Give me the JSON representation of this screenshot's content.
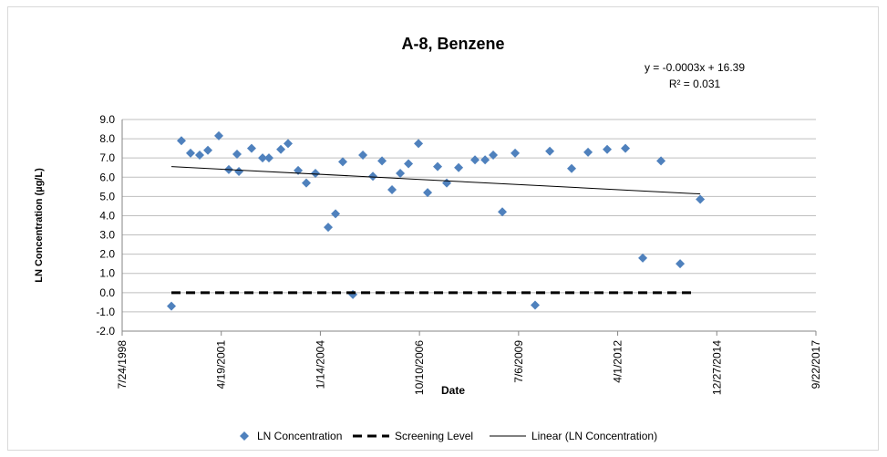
{
  "chart_data": {
    "type": "scatter",
    "title": "A-8, Benzene",
    "x_label": "Date",
    "y_label": "LN Concentration (µg/L)",
    "annotations": [
      "y = -0.0003x + 16.39",
      "R² = 0.031"
    ],
    "xlim": [
      36000,
      43000
    ],
    "xticks": [
      {
        "value": 36000,
        "label": "7/24/1998"
      },
      {
        "value": 37000,
        "label": "4/19/2001"
      },
      {
        "value": 38000,
        "label": "1/14/2004"
      },
      {
        "value": 39000,
        "label": "10/10/2006"
      },
      {
        "value": 40000,
        "label": "7/6/2009"
      },
      {
        "value": 41000,
        "label": "4/1/2012"
      },
      {
        "value": 42000,
        "label": "12/27/2014"
      },
      {
        "value": 43000,
        "label": "9/22/2017"
      }
    ],
    "ylim": [
      -2,
      9
    ],
    "yticks": [
      {
        "value": -2,
        "label": "-2.0"
      },
      {
        "value": -1,
        "label": "-1.0"
      },
      {
        "value": 0,
        "label": "0.0"
      },
      {
        "value": 1,
        "label": "1.0"
      },
      {
        "value": 2,
        "label": "2.0"
      },
      {
        "value": 3,
        "label": "3.0"
      },
      {
        "value": 4,
        "label": "4.0"
      },
      {
        "value": 5,
        "label": "5.0"
      },
      {
        "value": 6,
        "label": "6.0"
      },
      {
        "value": 7,
        "label": "7.0"
      },
      {
        "value": 8,
        "label": "8.0"
      },
      {
        "value": 9,
        "label": "9.0"
      }
    ],
    "grid": true,
    "legend": "bottom",
    "series": [
      {
        "name": "LN Concentration",
        "color": "#4f81bd",
        "style": "markers",
        "x": [
          36497,
          36598,
          36690,
          36782,
          36865,
          36975,
          37076,
          37159,
          37178,
          37306,
          37417,
          37481,
          37601,
          37674,
          37776,
          37858,
          37950,
          38079,
          38153,
          38226,
          38328,
          38429,
          38530,
          38622,
          38723,
          38806,
          38889,
          38990,
          39082,
          39183,
          39275,
          39395,
          39560,
          39662,
          39744,
          39836,
          39965,
          40167,
          40315,
          40535,
          40701,
          40894,
          41078,
          41253,
          41437,
          41630,
          41833
        ],
        "values": [
          -0.7,
          7.9,
          7.25,
          7.15,
          7.4,
          8.15,
          6.4,
          7.2,
          6.3,
          7.5,
          7.0,
          7.0,
          7.45,
          7.75,
          6.35,
          5.7,
          6.2,
          3.4,
          4.1,
          6.8,
          -0.1,
          7.15,
          6.05,
          6.85,
          5.35,
          6.2,
          6.7,
          7.75,
          5.2,
          6.55,
          5.7,
          6.5,
          6.9,
          6.9,
          7.15,
          4.2,
          7.25,
          -0.65,
          7.35,
          6.45,
          7.3,
          7.45,
          7.5,
          1.8,
          6.85,
          1.5,
          4.85
        ]
      },
      {
        "name": "Screening Level",
        "color": "#000000",
        "style": "dashed",
        "x": [
          36497,
          41759
        ],
        "values": [
          0,
          0
        ]
      },
      {
        "name": "Linear (LN Concentration)",
        "color": "#000000",
        "style": "solid",
        "x": [
          36497,
          41833
        ],
        "values": [
          6.55,
          5.13
        ]
      }
    ]
  }
}
